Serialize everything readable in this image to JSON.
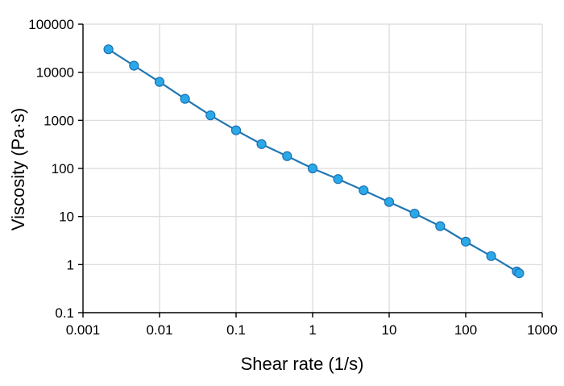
{
  "chart_data": {
    "type": "scatter",
    "xlabel": "Shear rate (1/s)",
    "ylabel": "Viscosity (Pa·s)",
    "x_scale": "log",
    "y_scale": "log",
    "xlim": [
      0.001,
      1000
    ],
    "ylim": [
      0.1,
      100000
    ],
    "x_ticks": [
      "0.001",
      "0.01",
      "0.1",
      "1",
      "10",
      "100",
      "1000"
    ],
    "y_ticks": [
      "0.1",
      "1",
      "10",
      "100",
      "1000",
      "10000",
      "100000"
    ],
    "grid": true,
    "legend": "none",
    "colors": {
      "line": "#1f77b4",
      "marker_fill": "#29a9e8",
      "marker_edge": "#1f6fb2"
    },
    "series": [
      {
        "x": [
          0.00215,
          0.00464,
          0.01,
          0.0215,
          0.0464,
          0.1,
          0.215,
          0.464,
          1,
          2.15,
          4.64,
          10,
          21.5,
          46.4,
          100,
          215,
          464,
          500
        ],
        "y": [
          30000,
          13700,
          6300,
          2800,
          1270,
          620,
          320,
          180,
          100,
          60,
          35,
          20,
          11.5,
          6.3,
          3,
          1.5,
          0.72,
          0.66
        ]
      }
    ]
  }
}
